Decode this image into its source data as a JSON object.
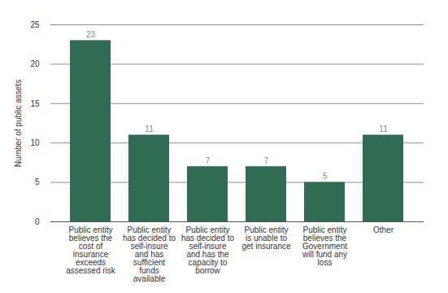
{
  "chart_data": {
    "type": "bar",
    "y_label": "Number of public assets",
    "categories": [
      "Public entity believes the cost of insurance exceeds assessed risk",
      "Public entity has decided to self-insure and has sufficient funds available",
      "Public entity has decided to self-insure and has the capacity to borrow",
      "Public entity is unable to get insurance",
      "Public entity believes the Government will fund any loss",
      "Other"
    ],
    "values": [
      23,
      11,
      7,
      7,
      5,
      11
    ],
    "color": "#2f6b52",
    "ylim": [
      0,
      25
    ],
    "yticks": [
      0,
      5,
      10,
      15,
      20,
      25
    ],
    "grid": true,
    "data_labels": true
  }
}
